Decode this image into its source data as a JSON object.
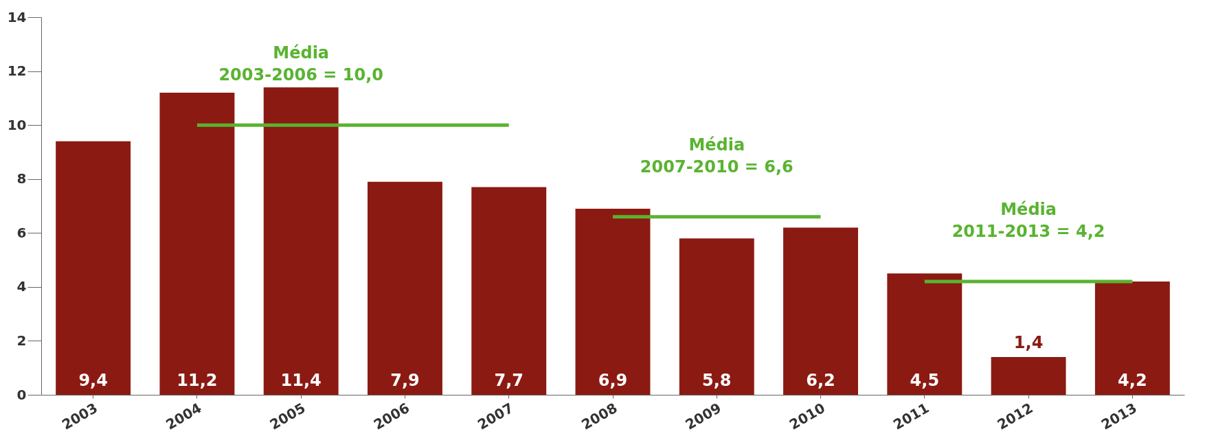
{
  "chart_data": {
    "type": "bar",
    "categories": [
      "2003",
      "2004",
      "2005",
      "2006",
      "2007",
      "2008",
      "2009",
      "2010",
      "2011",
      "2012",
      "2013"
    ],
    "series": [
      {
        "color": "#8b1a12",
        "values": [
          9.4,
          11.2,
          11.4,
          7.9,
          7.7,
          6.9,
          5.8,
          6.2,
          4.5,
          1.4,
          4.2
        ],
        "value_labels": [
          "9,4",
          "11,2",
          "11,4",
          "7,9",
          "7,7",
          "6,9",
          "5,8",
          "6,2",
          "4,5",
          "1,4",
          "4,2"
        ]
      },
      {
        "type": "line",
        "color": "#5ab331",
        "values": [
          null,
          10.0,
          10.0,
          10.0,
          10.0,
          null,
          null,
          null,
          null,
          null,
          null
        ]
      },
      {
        "type": "line",
        "color": "#5ab331",
        "values": [
          null,
          null,
          null,
          null,
          null,
          6.6,
          6.6,
          6.6,
          null,
          null,
          null
        ]
      },
      {
        "type": "line",
        "color": "#5ab331",
        "values": [
          null,
          null,
          null,
          null,
          null,
          null,
          null,
          null,
          4.2,
          4.2,
          4.2
        ]
      }
    ],
    "annotations": [
      {
        "text": "Média\n2003-2006 = 10,0",
        "x": "2005",
        "y": 10.0
      },
      {
        "text": "Média\n2007-2010 = 6,6",
        "x": "2009",
        "y": 6.6
      },
      {
        "text": "Média\n2011-2013 = 4,2",
        "x": "2012",
        "y": 4.2
      }
    ],
    "ylim": [
      0,
      14
    ],
    "yticks": [
      0,
      2,
      4,
      6,
      8,
      10,
      12,
      14
    ],
    "grid": false
  }
}
